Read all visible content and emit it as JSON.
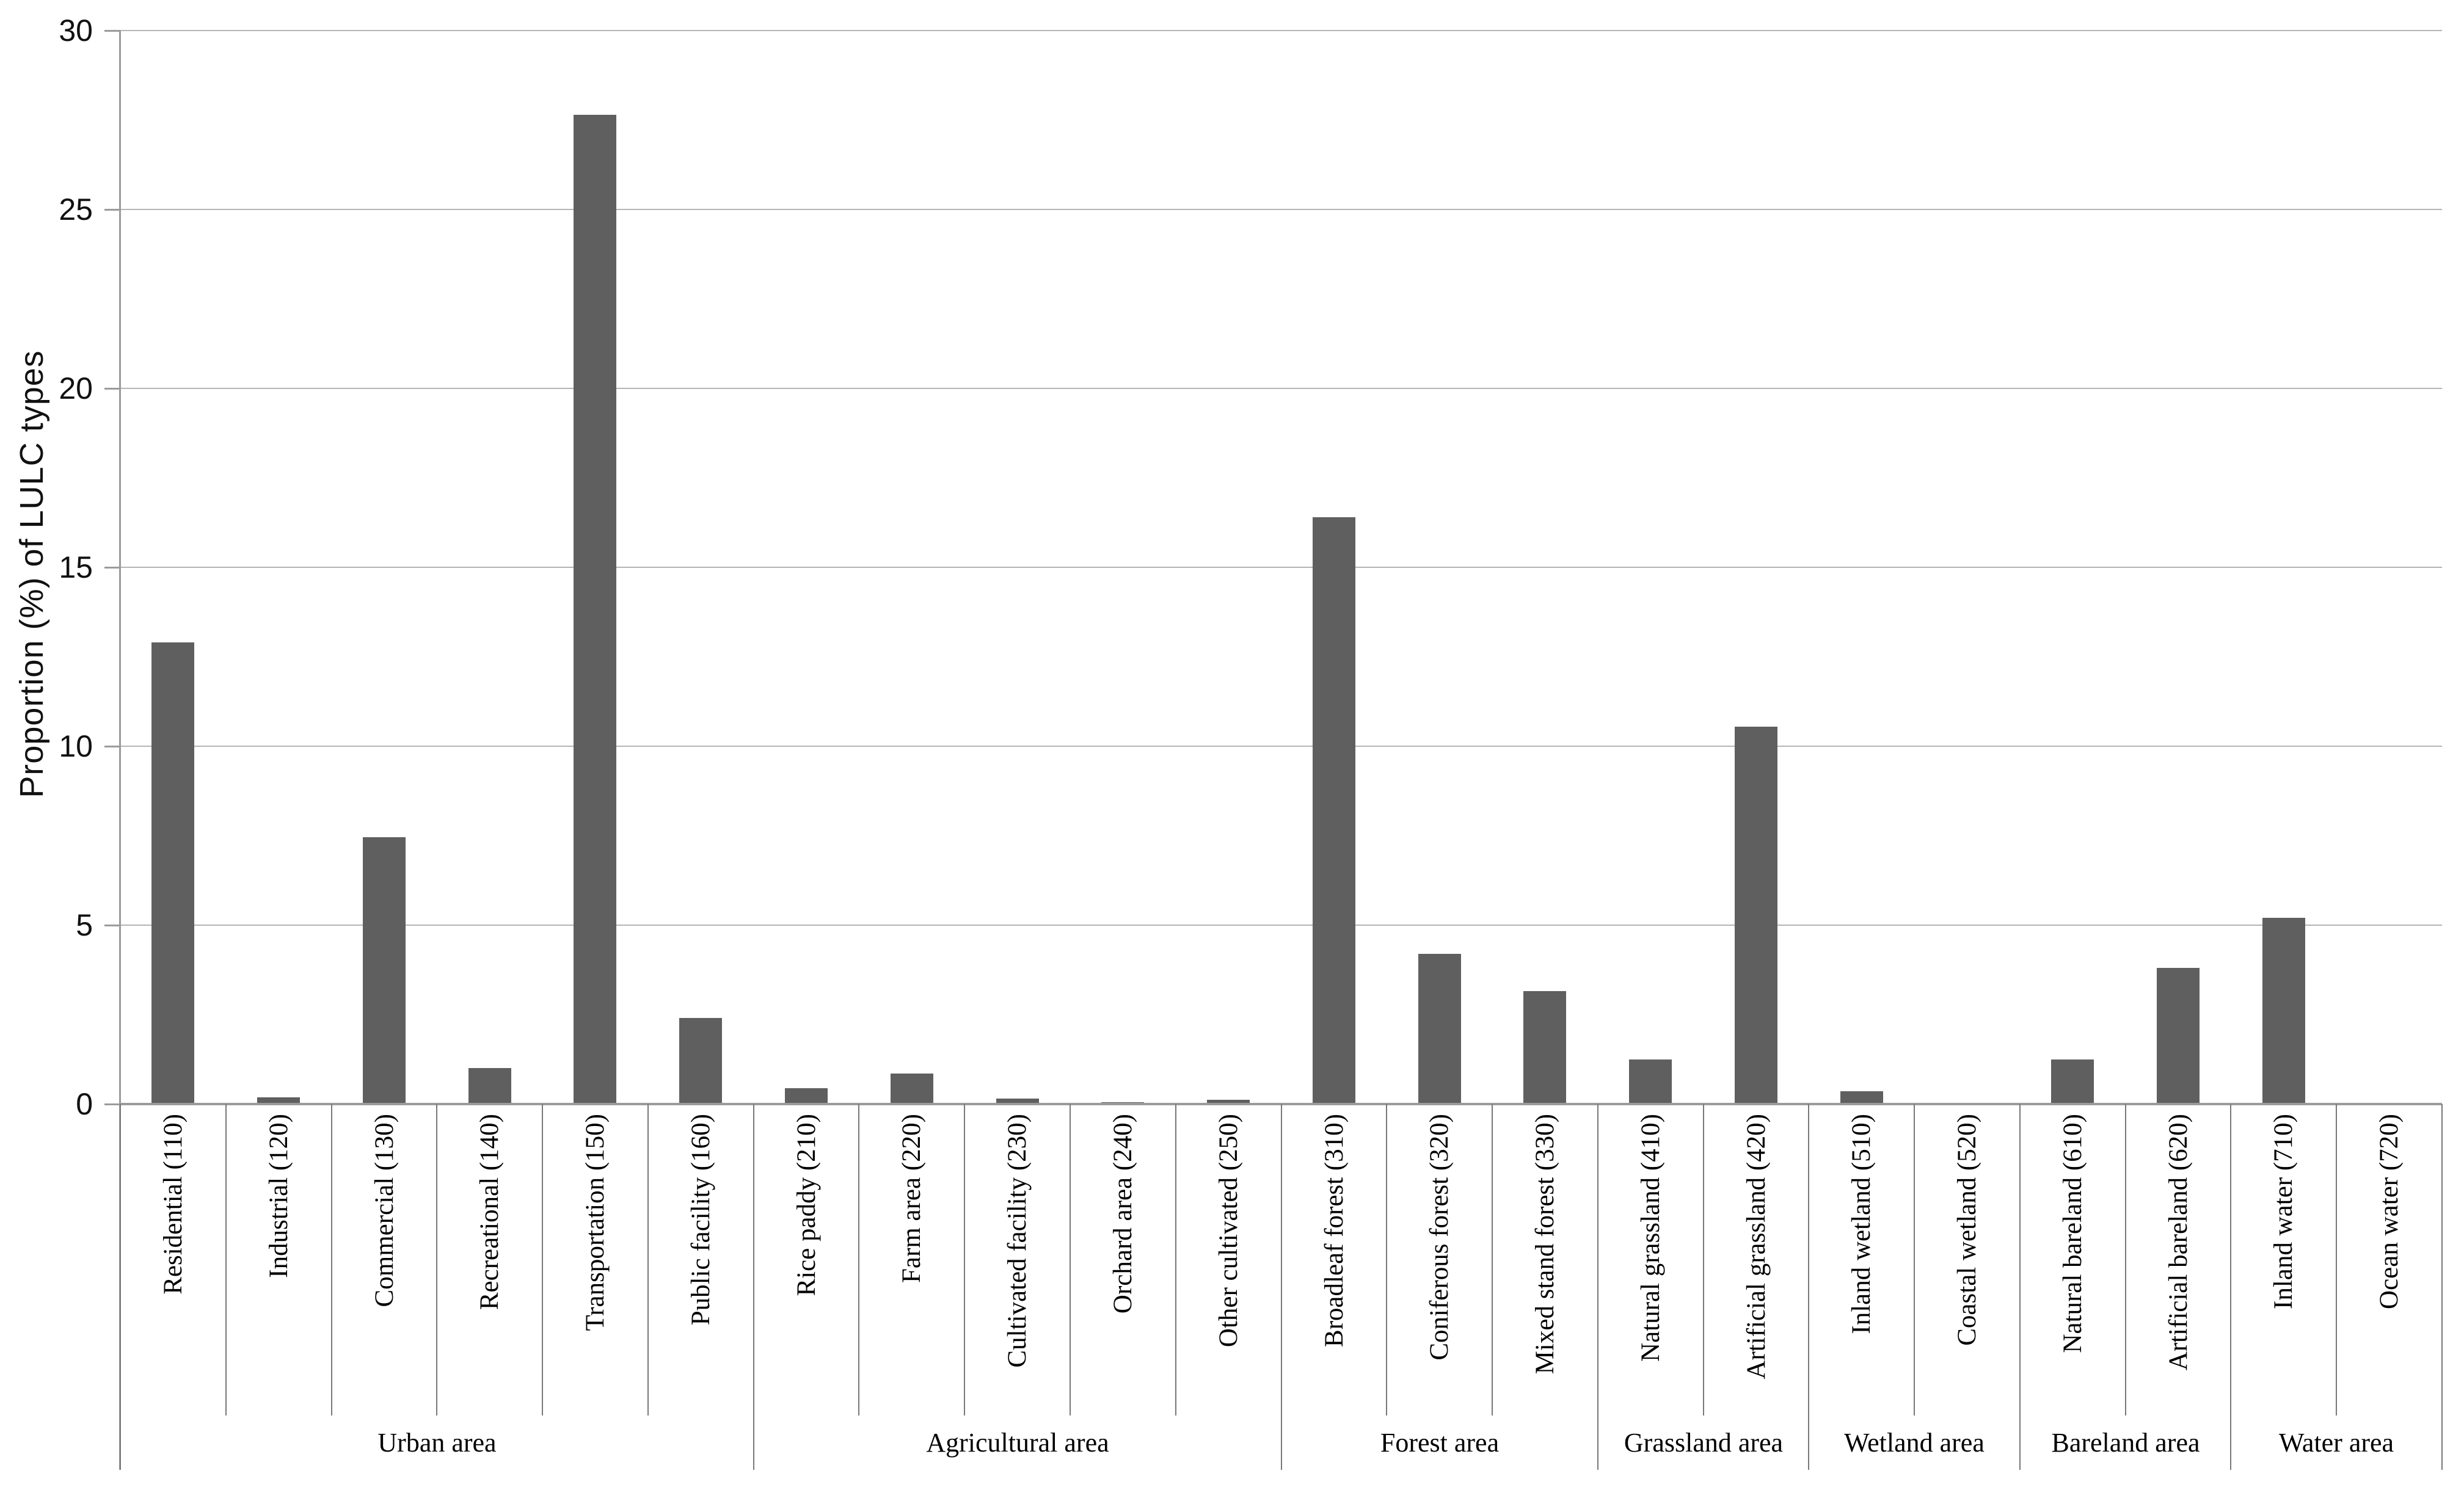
{
  "figure": {
    "background": "#ffffff"
  },
  "colors": {
    "bar_fill": "#5f5f5f",
    "gridline": "#b5b5b5",
    "axis": "#9b9b9b",
    "separator": "#787878",
    "text": "#111111"
  },
  "chart_data": {
    "type": "bar",
    "title": "",
    "xlabel": "",
    "ylabel": "Proportion (%) of LULC types",
    "ylim": [
      0,
      30
    ],
    "yticks": [
      0,
      5,
      10,
      15,
      20,
      25,
      30
    ],
    "grid": "horizontal-major",
    "legend": "none",
    "bar_color": "#5f5f5f",
    "categories": [
      "Residential (110)",
      "Industrial (120)",
      "Commercial (130)",
      "Recreational (140)",
      "Transportation (150)",
      "Public facility (160)",
      "Rice paddy (210)",
      "Farm area (220)",
      "Cultivated facility (230)",
      "Orchard area (240)",
      "Other cultivated (250)",
      "Broadleaf forest (310)",
      "Coniferous forest (320)",
      "Mixed stand forest (330)",
      "Natural grassland (410)",
      "Artificial grassland (420)",
      "Inland wetland (510)",
      "Coastal wetland (520)",
      "Natural bareland (610)",
      "Artificial bareland (620)",
      "Inland water (710)",
      "Ocean water (720)"
    ],
    "values": [
      12.9,
      0.18,
      7.45,
      1.0,
      27.65,
      2.4,
      0.45,
      0.85,
      0.15,
      0.05,
      0.12,
      16.4,
      4.2,
      3.15,
      1.25,
      10.55,
      0.35,
      0,
      1.25,
      3.8,
      5.2,
      0
    ],
    "groups": [
      {
        "label": "Urban area",
        "count": 6
      },
      {
        "label": "Agricultural area",
        "count": 5
      },
      {
        "label": "Forest area",
        "count": 3
      },
      {
        "label": "Grassland area",
        "count": 2
      },
      {
        "label": "Wetland area",
        "count": 2
      },
      {
        "label": "Bareland area",
        "count": 2
      },
      {
        "label": "Water area",
        "count": 2
      }
    ]
  }
}
